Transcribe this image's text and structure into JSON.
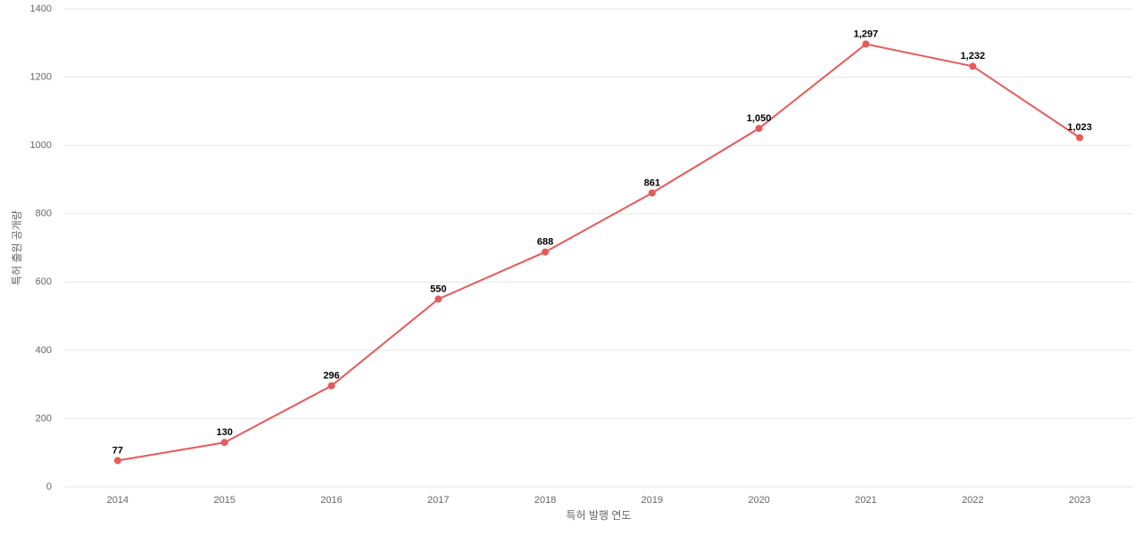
{
  "chart_data": {
    "type": "line",
    "xlabel": "특허 발행 연도",
    "ylabel": "특허 출원 공개량",
    "categories": [
      "2014",
      "2015",
      "2016",
      "2017",
      "2018",
      "2019",
      "2020",
      "2021",
      "2022",
      "2023"
    ],
    "values": [
      77,
      130,
      296,
      550,
      688,
      861,
      1050,
      1297,
      1232,
      1023
    ],
    "value_labels": [
      "77",
      "130",
      "296",
      "550",
      "688",
      "861",
      "1,050",
      "1,297",
      "1,232",
      "1,023"
    ],
    "color": "#e8595a",
    "ylim": [
      0,
      1400
    ],
    "yticks": [
      0,
      200,
      400,
      600,
      800,
      1000,
      1200,
      1400
    ],
    "grid": true
  }
}
